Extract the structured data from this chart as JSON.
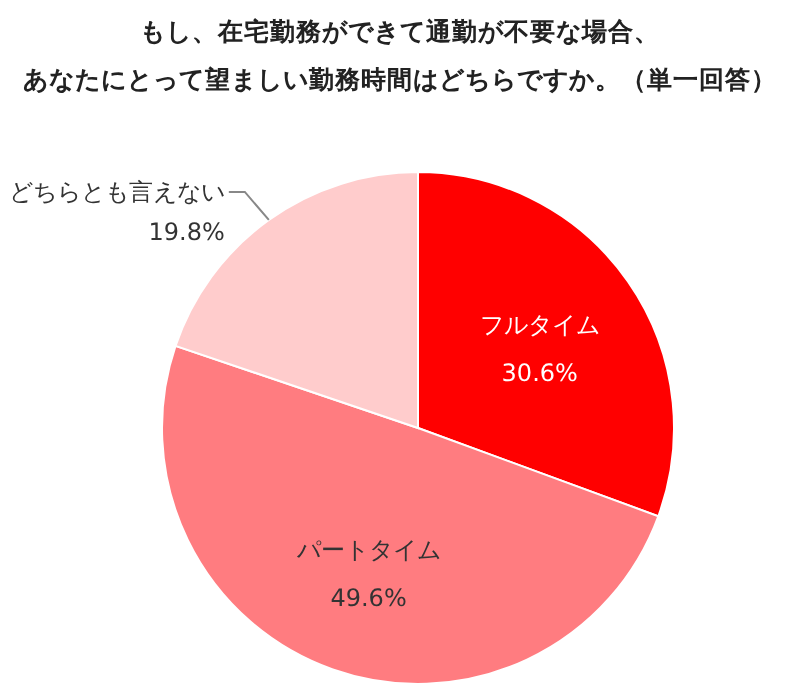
{
  "chart_data": {
    "type": "pie",
    "title": "もし、在宅勤務ができて通勤が不要な場合、",
    "subtitle": "あなたにとって望ましい勤務時間はどちらですか。（単一回答）",
    "categories": [
      "フルタイム",
      "パートタイム",
      "どちらとも言えない"
    ],
    "values": [
      30.6,
      49.6,
      19.8
    ],
    "colors": [
      "#ff0000",
      "#ff7c80",
      "#ffcccc"
    ],
    "value_labels": [
      "30.6%",
      "49.6%",
      "19.8%"
    ]
  }
}
